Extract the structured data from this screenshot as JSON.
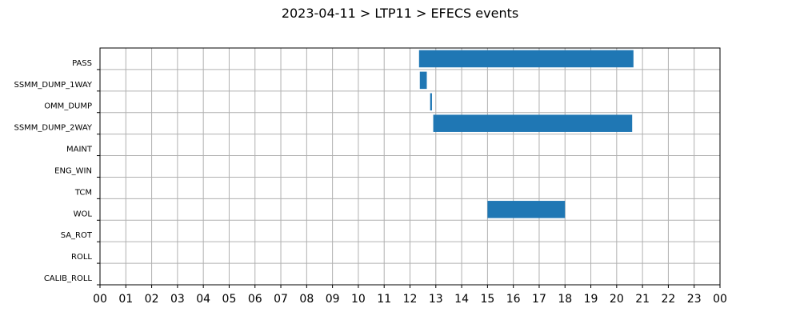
{
  "chart_data": {
    "type": "bar",
    "orientation": "horizontal-timeline",
    "title": "2023-04-11 > LTP11 > EFECS events",
    "xlabel": "",
    "ylabel": "",
    "xlim": [
      0,
      24
    ],
    "x_tick_labels": [
      "00",
      "01",
      "02",
      "03",
      "04",
      "05",
      "06",
      "07",
      "08",
      "09",
      "10",
      "11",
      "12",
      "13",
      "14",
      "15",
      "16",
      "17",
      "18",
      "19",
      "20",
      "21",
      "22",
      "23",
      "00"
    ],
    "categories": [
      "PASS",
      "SSMM_DUMP_1WAY",
      "OMM_DUMP",
      "SSMM_DUMP_2WAY",
      "MAINT",
      "ENG_WIN",
      "TCM",
      "WOL",
      "SA_ROT",
      "ROLL",
      "CALIB_ROLL"
    ],
    "grid": true,
    "bar_color": "#1f77b4",
    "events": [
      {
        "category": "PASS",
        "start": 12.35,
        "end": 20.65
      },
      {
        "category": "SSMM_DUMP_1WAY",
        "start": 12.38,
        "end": 12.65
      },
      {
        "category": "OMM_DUMP",
        "start": 12.78,
        "end": 12.85
      },
      {
        "category": "SSMM_DUMP_2WAY",
        "start": 12.9,
        "end": 20.6
      },
      {
        "category": "WOL",
        "start": 15.0,
        "end": 18.0
      }
    ]
  }
}
